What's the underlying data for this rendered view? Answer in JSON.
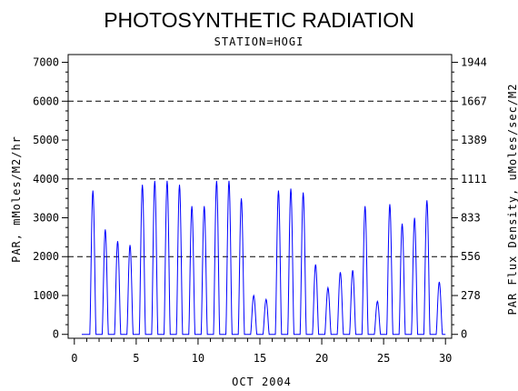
{
  "chart_data": {
    "type": "line",
    "title": "PHOTOSYNTHETIC RADIATION",
    "subtitle": "STATION=HOGI",
    "xlabel": "OCT 2004",
    "ylabel": "PAR, mMoles/M2/hr",
    "ylabel_right": "PAR Flux Density, uMoles/sec/M2",
    "xlim": [
      -0.5,
      30.5
    ],
    "ylim": [
      -100,
      7200
    ],
    "x_ticks": [
      "0",
      "5",
      "10",
      "15",
      "20",
      "25",
      "30"
    ],
    "y_ticks": [
      "0",
      "1000",
      "2000",
      "3000",
      "4000",
      "5000",
      "6000",
      "7000"
    ],
    "y_ticks_right": [
      "0",
      "278",
      "556",
      "833",
      "1111",
      "1389",
      "1667",
      "1944"
    ],
    "gridlines_y": [
      2000,
      4000,
      6000
    ],
    "grid_style": "dashed",
    "line_color": "#0000ff",
    "daily_peaks": [
      {
        "day": 1,
        "peak": 3700
      },
      {
        "day": 2,
        "peak": 2700
      },
      {
        "day": 3,
        "peak": 2400
      },
      {
        "day": 4,
        "peak": 2300
      },
      {
        "day": 5,
        "peak": 3850
      },
      {
        "day": 6,
        "peak": 3950
      },
      {
        "day": 7,
        "peak": 3950
      },
      {
        "day": 8,
        "peak": 3850
      },
      {
        "day": 9,
        "peak": 3300
      },
      {
        "day": 10,
        "peak": 3300
      },
      {
        "day": 11,
        "peak": 3950
      },
      {
        "day": 12,
        "peak": 3950
      },
      {
        "day": 13,
        "peak": 3500
      },
      {
        "day": 14,
        "peak": 1000
      },
      {
        "day": 15,
        "peak": 900
      },
      {
        "day": 16,
        "peak": 3700
      },
      {
        "day": 17,
        "peak": 3750
      },
      {
        "day": 18,
        "peak": 3650
      },
      {
        "day": 19,
        "peak": 1800
      },
      {
        "day": 20,
        "peak": 1200
      },
      {
        "day": 21,
        "peak": 1600
      },
      {
        "day": 22,
        "peak": 1650
      },
      {
        "day": 23,
        "peak": 3300
      },
      {
        "day": 24,
        "peak": 850
      },
      {
        "day": 25,
        "peak": 3350
      },
      {
        "day": 26,
        "peak": 2850
      },
      {
        "day": 27,
        "peak": 3000
      },
      {
        "day": 28,
        "peak": 3450
      },
      {
        "day": 29,
        "peak": 1350
      }
    ]
  }
}
